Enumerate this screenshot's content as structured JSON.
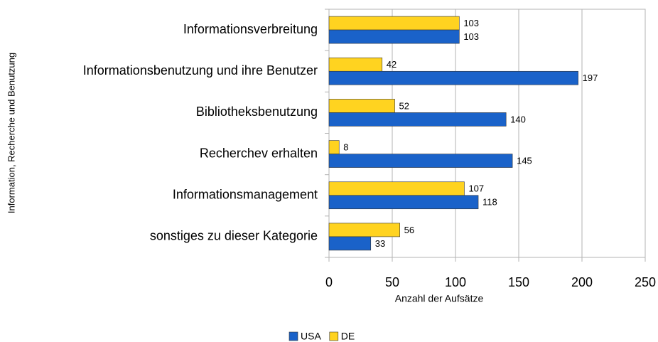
{
  "chart_data": {
    "type": "hbar",
    "categories": [
      "Informationsverbreitung",
      "Informationsbenutzung und ihre Benutzer",
      "Bibliotheksbenutzung",
      "Recherchev erhalten",
      "Informationsmanagement",
      "sonstiges zu dieser Kategorie"
    ],
    "series": [
      {
        "name": "USA",
        "color": "#1a62c9",
        "values": [
          103,
          197,
          140,
          145,
          118,
          33
        ]
      },
      {
        "name": "DE",
        "color": "#ffd320",
        "values": [
          103,
          42,
          52,
          8,
          107,
          56
        ]
      }
    ],
    "xlim": [
      0,
      250
    ],
    "xticks": [
      0,
      50,
      100,
      150,
      200,
      250
    ],
    "grid": true,
    "xlabel": "Anzahl der Aufsätze",
    "ylabel": "Information, Recherche und Benutzung",
    "legend": "bottom"
  }
}
